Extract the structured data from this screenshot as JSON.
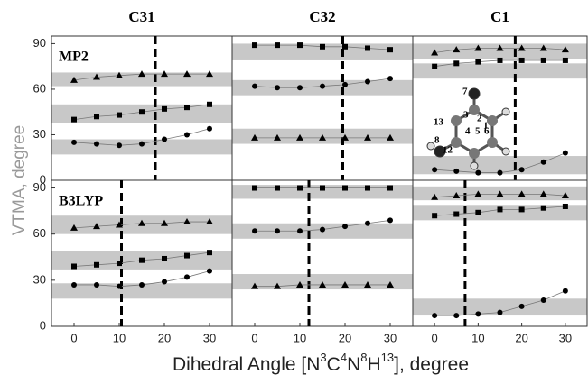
{
  "figure": {
    "ylabel": "VTMA, degree",
    "xlabel_parts": [
      "Dihedral Angle [N",
      "3",
      "C",
      "4",
      "N",
      "8",
      "H",
      "13",
      "], degree"
    ],
    "inset_labels": [
      "7",
      "3",
      "2",
      "1",
      "4",
      "5",
      "6",
      "13",
      "8",
      "12"
    ]
  },
  "chart_data": [
    {
      "type": "line",
      "title": "C31",
      "annotation": "MP2",
      "x": [
        0,
        5,
        10,
        15,
        20,
        25,
        30
      ],
      "xlim": [
        -5,
        35
      ],
      "ylim": [
        0,
        95
      ],
      "yticks": [
        0,
        30,
        60,
        90
      ],
      "vline": 18,
      "bands": [
        [
          62,
          71
        ],
        [
          38,
          50
        ],
        [
          17,
          27
        ]
      ],
      "series": [
        {
          "marker": "triangle",
          "color": "#000000",
          "values": [
            66,
            68,
            69,
            70,
            70,
            70,
            70
          ]
        },
        {
          "marker": "square",
          "color": "#000000",
          "values": [
            40,
            42,
            43,
            45,
            47,
            48,
            50
          ]
        },
        {
          "marker": "circle",
          "color": "#000000",
          "values": [
            25,
            24,
            23,
            24,
            27,
            30,
            34
          ]
        }
      ]
    },
    {
      "type": "line",
      "title": "C32",
      "x": [
        0,
        5,
        10,
        15,
        20,
        25,
        30
      ],
      "xlim": [
        -5,
        35
      ],
      "ylim": [
        0,
        95
      ],
      "vline": 19.5,
      "bands": [
        [
          79,
          90
        ],
        [
          56,
          66
        ],
        [
          24,
          34
        ]
      ],
      "series": [
        {
          "marker": "square",
          "color": "#000000",
          "values": [
            89,
            89,
            89,
            88,
            88,
            87,
            86
          ]
        },
        {
          "marker": "circle",
          "color": "#000000",
          "values": [
            62,
            61,
            61,
            62,
            63,
            65,
            67
          ]
        },
        {
          "marker": "triangle",
          "color": "#000000",
          "values": [
            28,
            28,
            28,
            28,
            28,
            28,
            28
          ]
        }
      ]
    },
    {
      "type": "line",
      "title": "C1",
      "x": [
        0,
        5,
        10,
        15,
        20,
        25,
        30
      ],
      "xlim": [
        -5,
        35
      ],
      "ylim": [
        0,
        95
      ],
      "vline": 18.5,
      "bands": [
        [
          80,
          90
        ],
        [
          67,
          77
        ],
        [
          4,
          16
        ]
      ],
      "series": [
        {
          "marker": "triangle",
          "color": "#000000",
          "values": [
            84,
            86,
            87,
            87,
            87,
            87,
            86
          ]
        },
        {
          "marker": "square",
          "color": "#000000",
          "values": [
            75,
            77,
            78,
            79,
            79,
            79,
            79
          ]
        },
        {
          "marker": "circle",
          "color": "#000000",
          "values": [
            7,
            6,
            5,
            5,
            7,
            12,
            18
          ]
        }
      ]
    },
    {
      "type": "line",
      "annotation": "B3LYP",
      "x": [
        0,
        5,
        10,
        15,
        20,
        25,
        30
      ],
      "xlim": [
        -5,
        35
      ],
      "ylim": [
        0,
        95
      ],
      "yticks": [
        0,
        30,
        60,
        90
      ],
      "xticks": [
        0,
        10,
        20,
        30
      ],
      "vline": 10.5,
      "bands": [
        [
          60,
          72
        ],
        [
          37,
          49
        ],
        [
          18,
          28
        ]
      ],
      "series": [
        {
          "marker": "triangle",
          "color": "#000000",
          "values": [
            64,
            65,
            66,
            67,
            67,
            68,
            68
          ]
        },
        {
          "marker": "square",
          "color": "#000000",
          "values": [
            39,
            40,
            41,
            43,
            44,
            46,
            48
          ]
        },
        {
          "marker": "circle",
          "color": "#000000",
          "values": [
            27,
            27,
            26,
            27,
            29,
            32,
            36
          ]
        }
      ]
    },
    {
      "type": "line",
      "x": [
        0,
        5,
        10,
        15,
        20,
        25,
        30
      ],
      "xlim": [
        -5,
        35
      ],
      "ylim": [
        0,
        95
      ],
      "xticks": [
        0,
        10,
        20,
        30
      ],
      "vline": 12,
      "bands": [
        [
          83,
          92
        ],
        [
          57,
          67
        ],
        [
          24,
          34
        ]
      ],
      "series": [
        {
          "marker": "square",
          "color": "#000000",
          "values": [
            90,
            90,
            90,
            90,
            90,
            90,
            90
          ]
        },
        {
          "marker": "circle",
          "color": "#000000",
          "values": [
            62,
            62,
            62,
            63,
            65,
            67,
            69
          ]
        },
        {
          "marker": "triangle",
          "color": "#000000",
          "values": [
            26,
            26,
            27,
            27,
            27,
            27,
            27
          ]
        }
      ]
    },
    {
      "type": "line",
      "x": [
        0,
        5,
        10,
        15,
        20,
        25,
        30
      ],
      "xlim": [
        -5,
        35
      ],
      "ylim": [
        0,
        95
      ],
      "xticks": [
        0,
        10,
        20,
        30
      ],
      "vline": 7,
      "bands": [
        [
          82,
          91
        ],
        [
          69,
          79
        ],
        [
          7,
          18
        ]
      ],
      "series": [
        {
          "marker": "triangle",
          "color": "#000000",
          "values": [
            84,
            85,
            86,
            86,
            86,
            86,
            85
          ]
        },
        {
          "marker": "square",
          "color": "#000000",
          "values": [
            72,
            73,
            74,
            76,
            76,
            77,
            78
          ]
        },
        {
          "marker": "circle",
          "color": "#000000",
          "values": [
            7,
            7,
            8,
            9,
            13,
            17,
            23
          ]
        }
      ]
    }
  ]
}
